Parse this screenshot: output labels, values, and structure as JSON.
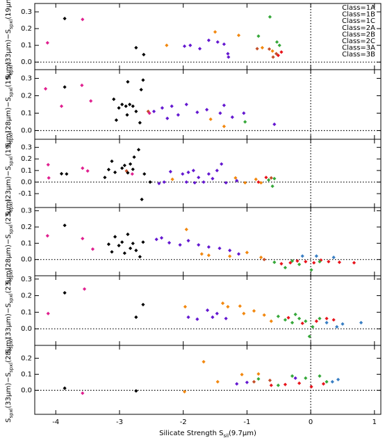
{
  "chart_data": [
    {
      "type": "scatter",
      "ylabel_parts": [
        "S",
        "spxl",
        "(33μm)−S",
        "spxl",
        "(19μm)"
      ],
      "xlim": [
        -4.33,
        1.1
      ],
      "xticks": [
        -4,
        -3,
        -2,
        -1,
        0,
        1
      ],
      "ylim": [
        -0.045,
        0.35
      ],
      "yticks": [
        {
          "value": 0,
          "label": "0.0"
        },
        {
          "value": 0.1,
          "label": "0.1"
        },
        {
          "value": 0.2,
          "label": "0.2"
        },
        {
          "value": 0.3,
          "label": "0.3"
        }
      ],
      "hline": 0,
      "vline": 0,
      "legend": "upper right",
      "series": [
        {
          "name": "Class=1A",
          "color": "#e8141c",
          "x": [
            -0.51,
            -0.46
          ],
          "values": [
            0.04,
            0.06
          ]
        },
        {
          "name": "Class=1B",
          "color": "#3a7fc4",
          "x": [],
          "values": []
        },
        {
          "name": "Class=1C",
          "color": "#36a83a",
          "x": [
            -0.82,
            -0.64,
            -0.53,
            -0.49
          ],
          "values": [
            0.155,
            0.27,
            0.12,
            0.1
          ]
        },
        {
          "name": "Class=2A",
          "color": "#c4502a",
          "x": [
            -0.84,
            -0.65,
            -0.59,
            -0.54
          ],
          "values": [
            0.08,
            0.078,
            0.03,
            0.05
          ]
        },
        {
          "name": "Class=2B",
          "color": "#6418d0",
          "x": [
            -1.98,
            -1.89,
            -1.74,
            -1.6,
            -1.46,
            -1.36,
            -1.3,
            -1.29
          ],
          "values": [
            0.095,
            0.1,
            0.08,
            0.13,
            0.12,
            0.107,
            0.05,
            0.03
          ]
        },
        {
          "name": "Class=2C",
          "color": "#f2880f",
          "x": [
            -2.26,
            -1.5,
            -1.13,
            -0.76,
            -0.6
          ],
          "values": [
            0.1,
            0.18,
            0.16,
            0.086,
            0.066
          ]
        },
        {
          "name": "Class=3A",
          "color": "#e0208f",
          "x": [
            -4.13,
            -3.58
          ],
          "values": [
            0.115,
            0.255
          ]
        },
        {
          "name": "Class=3B",
          "color": "#000000",
          "x": [
            -3.86,
            -2.74,
            -2.62
          ],
          "values": [
            0.26,
            0.086,
            0.045
          ]
        }
      ]
    },
    {
      "type": "scatter",
      "ylabel_parts": [
        "S",
        "spxl",
        "(28μm)−S",
        "spxl",
        "(19μm)"
      ],
      "xlim": [
        -4.33,
        1.1
      ],
      "xticks": [
        -4,
        -3,
        -2,
        -1,
        0,
        1
      ],
      "ylim": [
        -0.05,
        0.35
      ],
      "yticks": [
        {
          "value": 0,
          "label": "0.0"
        },
        {
          "value": 0.1,
          "label": "0.1"
        },
        {
          "value": 0.2,
          "label": "0.2"
        },
        {
          "value": 0.3,
          "label": "0.3"
        }
      ],
      "hline": 0,
      "vline": 0,
      "series": [
        {
          "name": "Class=1C",
          "color": "#36a83a",
          "x": [
            -1.03
          ],
          "values": [
            0.05
          ]
        },
        {
          "name": "Class=2A",
          "color": "#c4502a",
          "x": [
            -2.55
          ],
          "values": [
            0.11
          ]
        },
        {
          "name": "Class=2B",
          "color": "#6418d0",
          "x": [
            -2.46,
            -2.33,
            -2.18,
            -2.08,
            -1.95,
            -1.78,
            -1.63,
            -1.42,
            -1.36,
            -1.23,
            -1.05,
            -0.57,
            -2.25
          ],
          "values": [
            0.11,
            0.13,
            0.14,
            0.09,
            0.15,
            0.105,
            0.12,
            0.1,
            0.145,
            0.077,
            0.1,
            0.036,
            0.07
          ]
        },
        {
          "name": "Class=2C",
          "color": "#f2880f",
          "x": [
            -1.57,
            -1.36
          ],
          "values": [
            0.065,
            0.024
          ]
        },
        {
          "name": "Class=3A",
          "color": "#e0208f",
          "x": [
            -4.16,
            -3.91,
            -3.59,
            -3.45,
            -2.53
          ],
          "values": [
            0.24,
            0.14,
            0.26,
            0.17,
            0.1
          ]
        },
        {
          "name": "Class=3B",
          "color": "#000000",
          "x": [
            -3.86,
            -3.09,
            -3.01,
            -2.96,
            -2.9,
            -2.87,
            -2.84,
            -2.79,
            -2.74,
            -2.66,
            -2.63,
            -3.05,
            -2.88,
            -2.68
          ],
          "values": [
            0.25,
            0.18,
            0.13,
            0.15,
            0.14,
            0.28,
            0.15,
            0.14,
            0.11,
            0.235,
            0.29,
            0.06,
            0.09,
            0.045
          ]
        }
      ]
    },
    {
      "type": "scatter",
      "ylabel_parts": [
        "S",
        "spxl",
        "(23μm)−S",
        "spxl",
        "(19μm)"
      ],
      "xlim": [
        -4.33,
        1.1
      ],
      "xticks": [
        -4,
        -3,
        -2,
        -1,
        0,
        1
      ],
      "ylim": [
        -0.22,
        0.37
      ],
      "yticks": [
        {
          "value": -0.1,
          "label": "-0.1"
        },
        {
          "value": 0,
          "label": "0.0"
        },
        {
          "value": 0.1,
          "label": "0.1"
        },
        {
          "value": 0.2,
          "label": "0.2"
        },
        {
          "value": 0.3,
          "label": "0.3"
        }
      ],
      "hline": 0,
      "vline": 0,
      "series": [
        {
          "name": "Class=1A",
          "color": "#e8141c",
          "x": [
            -0.82,
            -0.7
          ],
          "values": [
            0,
            0.04
          ]
        },
        {
          "name": "Class=1C",
          "color": "#36a83a",
          "x": [
            -0.66,
            -0.6,
            -0.57
          ],
          "values": [
            0.018,
            -0.036,
            0.03
          ]
        },
        {
          "name": "Class=2A",
          "color": "#c4502a",
          "x": [
            -2.89,
            -0.62
          ],
          "values": [
            0.096,
            0.036
          ]
        },
        {
          "name": "Class=2B",
          "color": "#6418d0",
          "x": [
            -2.38,
            -2.3,
            -2.2,
            -2.01,
            -1.92,
            -1.84,
            -1.76,
            -1.68,
            -1.6,
            -1.54,
            -1.47,
            -1.4,
            -1.33,
            -1.16,
            -1.95,
            -1.82
          ],
          "values": [
            -0.012,
            0,
            0.09,
            0.07,
            0.084,
            0.1,
            0.04,
            0,
            0.07,
            0.03,
            0.1,
            0.156,
            -0.006,
            0.012,
            0,
            -0.006
          ]
        },
        {
          "name": "Class=2C",
          "color": "#f2880f",
          "x": [
            -1.18,
            -1.03,
            -0.86,
            -0.78,
            -2.17
          ],
          "values": [
            0.036,
            -0.006,
            0.024,
            -0.006,
            0.024
          ]
        },
        {
          "name": "Class=3A",
          "color": "#e0208f",
          "x": [
            -4.12,
            -4.11,
            -3.58,
            -3.5,
            -2.8
          ],
          "values": [
            0.15,
            0.036,
            0.12,
            0.096,
            0.07
          ]
        },
        {
          "name": "Class=3B",
          "color": "#000000",
          "x": [
            -3.91,
            -3.83,
            -3.17,
            -3.12,
            -3.07,
            -2.96,
            -2.92,
            -2.87,
            -2.83,
            -2.77,
            -2.7,
            -2.65,
            -2.61,
            -2.52,
            -2.79,
            -3.23
          ],
          "values": [
            0.072,
            0.07,
            0.108,
            0.18,
            0.084,
            0.12,
            0.144,
            0.08,
            0.156,
            0.216,
            0.28,
            -0.15,
            0.07,
            0,
            0.11,
            0.04
          ]
        }
      ]
    },
    {
      "type": "scatter",
      "ylabel_parts": [
        "S",
        "spxl",
        "(28μm)−S",
        "spxl",
        "(23μm)"
      ],
      "xlim": [
        -4.33,
        1.1
      ],
      "xticks": [
        -4,
        -3,
        -2,
        -1,
        0,
        1
      ],
      "ylim": [
        -0.1,
        0.32
      ],
      "yticks": [
        {
          "value": 0,
          "label": "0.0"
        },
        {
          "value": 0.1,
          "label": "0.1"
        },
        {
          "value": 0.2,
          "label": "0.2"
        },
        {
          "value": 0.3,
          "label": "0.3"
        }
      ],
      "hline": 0,
      "vline": 0,
      "series": [
        {
          "name": "Class=1A",
          "color": "#e8141c",
          "x": [
            -0.46,
            -0.32,
            -0.21,
            -0.08,
            0.05,
            0.16,
            0.28,
            0.45,
            0.68
          ],
          "values": [
            -0.026,
            -0.02,
            -0.009,
            -0.013,
            -0.02,
            -0.004,
            -0.013,
            -0.017,
            -0.02
          ]
        },
        {
          "name": "Class=1B",
          "color": "#3a7fc4",
          "x": [
            -0.13,
            0.09,
            0.36
          ],
          "values": [
            0.021,
            0.021,
            0.013
          ]
        },
        {
          "name": "Class=1C",
          "color": "#36a83a",
          "x": [
            -0.57,
            -0.4,
            -0.18,
            -0.29,
            0.01,
            0.14
          ],
          "values": [
            -0.017,
            -0.05,
            -0.03,
            -0.009,
            -0.064,
            -0.013
          ]
        },
        {
          "name": "Class=2A",
          "color": "#c4502a",
          "x": [
            -0.73
          ],
          "values": [
            0
          ]
        },
        {
          "name": "Class=2B",
          "color": "#6418d0",
          "x": [
            -2.42,
            -2.34,
            -2.22,
            -2.05,
            -1.92,
            -1.76,
            -1.6,
            -1.43,
            -1.27,
            -1.13
          ],
          "values": [
            0.124,
            0.133,
            0.103,
            0.09,
            0.116,
            0.09,
            0.077,
            0.069,
            0.056,
            0.034
          ]
        },
        {
          "name": "Class=2C",
          "color": "#f2880f",
          "x": [
            -1.95,
            -1.71,
            -1.6,
            -1.27,
            -1,
            -0.78
          ],
          "values": [
            0.185,
            0.034,
            0.026,
            0.02,
            0.043,
            0.013
          ]
        },
        {
          "name": "Class=3A",
          "color": "#e0208f",
          "x": [
            -4.13,
            -3.58,
            -3.42
          ],
          "values": [
            0.146,
            0.129,
            0.064
          ]
        },
        {
          "name": "Class=3B",
          "color": "#000000",
          "x": [
            -3.86,
            -3.07,
            -2.96,
            -2.87,
            -2.79,
            -3.17,
            -3.12,
            -2.92,
            -2.83,
            -2.74,
            -2.68,
            -2.63,
            -3.01
          ],
          "values": [
            0.21,
            0.14,
            0.107,
            0.155,
            0.099,
            0.094,
            0.047,
            0.039,
            0.069,
            0.056,
            0.017,
            0.107,
            0.086
          ]
        }
      ]
    },
    {
      "type": "scatter",
      "ylabel_parts": [
        "S",
        "spxl",
        "(33μm)−S",
        "spxl",
        "(23μm)"
      ],
      "xlim": [
        -4.33,
        1.1
      ],
      "xticks": [
        -4,
        -3,
        -2,
        -1,
        0,
        1
      ],
      "ylim": [
        -0.1,
        0.32
      ],
      "yticks": [
        {
          "value": 0,
          "label": "0.0"
        },
        {
          "value": 0.1,
          "label": "0.1"
        },
        {
          "value": 0.2,
          "label": "0.2"
        },
        {
          "value": 0.3,
          "label": "0.3"
        }
      ],
      "hline": 0,
      "vline": 0,
      "series": [
        {
          "name": "Class=1A",
          "color": "#e8141c",
          "x": [
            -0.35,
            -0.13,
            0.09,
            0.25,
            0.36
          ],
          "values": [
            0.067,
            0.033,
            0.046,
            0.062,
            0.054
          ]
        },
        {
          "name": "Class=1B",
          "color": "#3a7fc4",
          "x": [
            0.25,
            0.41,
            0.5,
            0.79
          ],
          "values": [
            0.037,
            0.012,
            0.029,
            0.037
          ]
        },
        {
          "name": "Class=1C",
          "color": "#36a83a",
          "x": [
            -0.51,
            -0.4,
            -0.29,
            -0.18,
            -0.08,
            0.03,
            -0.02,
            -0.24,
            0.14
          ],
          "values": [
            0.075,
            0.054,
            0.037,
            0.062,
            0.046,
            0.012,
            -0.046,
            0.087,
            0.062
          ]
        },
        {
          "name": "Class=2B",
          "color": "#6418d0",
          "x": [
            -1.92,
            -1.78,
            -1.62,
            -1.54,
            -1.47,
            -1.33
          ],
          "values": [
            0.07,
            0.058,
            0.112,
            0.07,
            0.092,
            0.062
          ]
        },
        {
          "name": "Class=2C",
          "color": "#f2880f",
          "x": [
            -1.97,
            -1.38,
            -1.3,
            -1.11,
            -1.05,
            -0.89,
            -0.73,
            -0.62
          ],
          "values": [
            0.133,
            0.154,
            0.133,
            0.137,
            0.092,
            0.108,
            0.083,
            0.046
          ]
        },
        {
          "name": "Class=3A",
          "color": "#e0208f",
          "x": [
            -4.12,
            -3.55
          ],
          "values": [
            0.092,
            0.24
          ]
        },
        {
          "name": "Class=3B",
          "color": "#000000",
          "x": [
            -3.86,
            -2.63,
            -2.74
          ],
          "values": [
            0.217,
            0.146,
            0.07
          ]
        }
      ]
    },
    {
      "type": "scatter",
      "ylabel_parts": [
        "S",
        "spxl",
        "(33μm)−S",
        "spxl",
        "(28μm)"
      ],
      "xlim": [
        -4.33,
        1.1
      ],
      "xticks": [
        -4,
        -3,
        -2,
        -1,
        0,
        1
      ],
      "xlabel_parts": [
        "Silicate Strength S",
        "sil",
        "(9.7μm)"
      ],
      "ylim": [
        -0.15,
        0.28
      ],
      "yticks": [
        {
          "value": 0,
          "label": "0.0"
        },
        {
          "value": 0.1,
          "label": "0.1"
        },
        {
          "value": 0.2,
          "label": "0.2"
        }
      ],
      "hline": 0,
      "vline": 0,
      "series": [
        {
          "name": "Class=1A",
          "color": "#e8141c",
          "x": [
            -0.62,
            -0.4,
            -0.18,
            0.01,
            0.2
          ],
          "values": [
            0.031,
            0.036,
            0.044,
            0.022,
            0.04
          ]
        },
        {
          "name": "Class=1B",
          "color": "#3a7fc4",
          "x": [
            0.34,
            0.43
          ],
          "values": [
            0.053,
            0.067
          ]
        },
        {
          "name": "Class=1C",
          "color": "#36a83a",
          "x": [
            -0.82,
            -0.51,
            -0.29,
            -0.08,
            0.14,
            0.25
          ],
          "values": [
            0.071,
            0.031,
            0.089,
            0.076,
            0.089,
            0.053
          ]
        },
        {
          "name": "Class=2A",
          "color": "#c4502a",
          "x": [
            -0.89,
            -0.64
          ],
          "values": [
            0.053,
            0.062
          ]
        },
        {
          "name": "Class=2B",
          "color": "#6418d0",
          "x": [
            -1.16,
            -1,
            -0.24
          ],
          "values": [
            0.04,
            0.049,
            0.076
          ]
        },
        {
          "name": "Class=2C",
          "color": "#f2880f",
          "x": [
            -1.98,
            -1.68,
            -1.46,
            -1.08,
            -0.82
          ],
          "values": [
            -0.009,
            0.178,
            0.053,
            0.098,
            0.102
          ]
        },
        {
          "name": "Class=3A",
          "color": "#e0208f",
          "x": [
            -3.58
          ],
          "values": [
            -0.018
          ]
        },
        {
          "name": "Class=3B",
          "color": "#000000",
          "x": [
            -3.86,
            -2.74
          ],
          "values": [
            0.013,
            -0.004
          ]
        }
      ]
    }
  ]
}
